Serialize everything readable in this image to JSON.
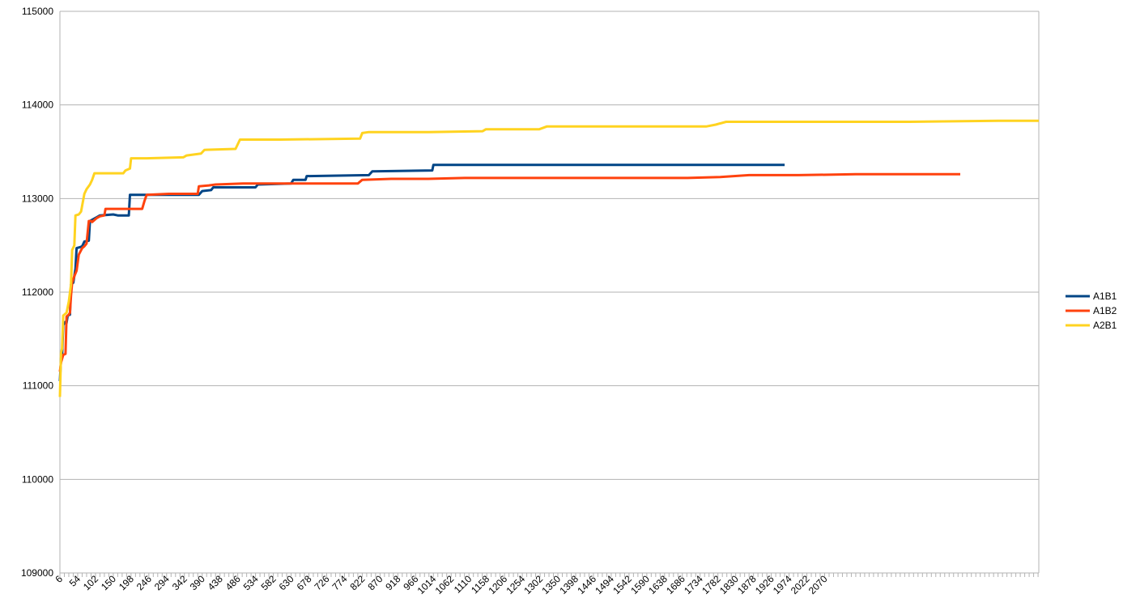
{
  "chart_data": {
    "type": "line",
    "title": "",
    "xlabel": "",
    "ylabel": "",
    "ylim": [
      109000,
      115000
    ],
    "yticks": [
      109000,
      110000,
      111000,
      112000,
      113000,
      114000,
      115000
    ],
    "xlim": [
      6,
      2648
    ],
    "xtick_labels": [
      "6",
      "54",
      "102",
      "150",
      "198",
      "246",
      "294",
      "342",
      "390",
      "438",
      "486",
      "534",
      "582",
      "630",
      "678",
      "726",
      "774",
      "822",
      "870",
      "918",
      "966",
      "1014",
      "1062",
      "1110",
      "1158",
      "1206",
      "1254",
      "1302",
      "1350",
      "1398",
      "1446",
      "1494",
      "1542",
      "1590",
      "1638",
      "1686",
      "1734",
      "1782",
      "1830",
      "1878",
      "1926",
      "1974",
      "2022",
      "2070"
    ],
    "grid": true,
    "legend_position": "right",
    "series": [
      {
        "name": "A1B1",
        "color": "#004586",
        "points": [
          [
            6,
            111050
          ],
          [
            9,
            111300
          ],
          [
            12,
            111330
          ],
          [
            15,
            111650
          ],
          [
            20,
            111680
          ],
          [
            24,
            111670
          ],
          [
            27,
            111750
          ],
          [
            33,
            111760
          ],
          [
            36,
            112080
          ],
          [
            42,
            112100
          ],
          [
            48,
            112250
          ],
          [
            51,
            112470
          ],
          [
            60,
            112480
          ],
          [
            66,
            112490
          ],
          [
            72,
            112540
          ],
          [
            84,
            112550
          ],
          [
            87,
            112760
          ],
          [
            96,
            112780
          ],
          [
            105,
            112800
          ],
          [
            114,
            112820
          ],
          [
            150,
            112830
          ],
          [
            162,
            112820
          ],
          [
            192,
            112820
          ],
          [
            195,
            113040
          ],
          [
            270,
            113040
          ],
          [
            381,
            113040
          ],
          [
            390,
            113080
          ],
          [
            414,
            113090
          ],
          [
            420,
            113120
          ],
          [
            534,
            113120
          ],
          [
            540,
            113150
          ],
          [
            630,
            113160
          ],
          [
            636,
            113200
          ],
          [
            669,
            113200
          ],
          [
            672,
            113240
          ],
          [
            840,
            113250
          ],
          [
            849,
            113290
          ],
          [
            1011,
            113300
          ],
          [
            1014,
            113360
          ],
          [
            1200,
            113360
          ],
          [
            1400,
            113360
          ],
          [
            1600,
            113360
          ],
          [
            1800,
            113360
          ],
          [
            1962,
            113360
          ]
        ]
      },
      {
        "name": "A1B2",
        "color": "#ff420e",
        "points": [
          [
            6,
            111150
          ],
          [
            9,
            111250
          ],
          [
            15,
            111330
          ],
          [
            21,
            111340
          ],
          [
            24,
            111740
          ],
          [
            30,
            111760
          ],
          [
            33,
            111780
          ],
          [
            36,
            111960
          ],
          [
            39,
            112100
          ],
          [
            45,
            112170
          ],
          [
            51,
            112230
          ],
          [
            57,
            112400
          ],
          [
            66,
            112470
          ],
          [
            72,
            112490
          ],
          [
            78,
            112520
          ],
          [
            84,
            112760
          ],
          [
            90,
            112760
          ],
          [
            93,
            112750
          ],
          [
            105,
            112790
          ],
          [
            114,
            112810
          ],
          [
            126,
            112820
          ],
          [
            129,
            112890
          ],
          [
            150,
            112890
          ],
          [
            228,
            112890
          ],
          [
            234,
            112970
          ],
          [
            240,
            113040
          ],
          [
            300,
            113050
          ],
          [
            378,
            113050
          ],
          [
            381,
            113130
          ],
          [
            408,
            113140
          ],
          [
            426,
            113150
          ],
          [
            500,
            113160
          ],
          [
            650,
            113160
          ],
          [
            810,
            113160
          ],
          [
            822,
            113200
          ],
          [
            900,
            113210
          ],
          [
            1000,
            113210
          ],
          [
            1098,
            113220
          ],
          [
            1400,
            113220
          ],
          [
            1700,
            113220
          ],
          [
            1788,
            113230
          ],
          [
            1866,
            113250
          ],
          [
            2000,
            113250
          ],
          [
            2154,
            113260
          ],
          [
            2436,
            113260
          ]
        ]
      },
      {
        "name": "A2B1",
        "color": "#ffd320",
        "points": [
          [
            6,
            110880
          ],
          [
            9,
            111350
          ],
          [
            12,
            111400
          ],
          [
            15,
            111750
          ],
          [
            18,
            111760
          ],
          [
            24,
            111780
          ],
          [
            30,
            111900
          ],
          [
            36,
            112080
          ],
          [
            39,
            112450
          ],
          [
            45,
            112500
          ],
          [
            48,
            112820
          ],
          [
            57,
            112830
          ],
          [
            63,
            112860
          ],
          [
            72,
            113050
          ],
          [
            78,
            113100
          ],
          [
            87,
            113150
          ],
          [
            93,
            113200
          ],
          [
            99,
            113270
          ],
          [
            150,
            113270
          ],
          [
            177,
            113270
          ],
          [
            183,
            113300
          ],
          [
            195,
            113320
          ],
          [
            198,
            113430
          ],
          [
            240,
            113430
          ],
          [
            339,
            113440
          ],
          [
            348,
            113460
          ],
          [
            387,
            113480
          ],
          [
            396,
            113520
          ],
          [
            480,
            113530
          ],
          [
            492,
            113630
          ],
          [
            600,
            113630
          ],
          [
            816,
            113640
          ],
          [
            822,
            113700
          ],
          [
            840,
            113710
          ],
          [
            1000,
            113710
          ],
          [
            1147,
            113720
          ],
          [
            1156,
            113740
          ],
          [
            1300,
            113740
          ],
          [
            1320,
            113770
          ],
          [
            1500,
            113770
          ],
          [
            1750,
            113770
          ],
          [
            1776,
            113790
          ],
          [
            1804,
            113820
          ],
          [
            2000,
            113820
          ],
          [
            2300,
            113820
          ],
          [
            2538,
            113830
          ],
          [
            2648,
            113830
          ]
        ]
      }
    ]
  }
}
